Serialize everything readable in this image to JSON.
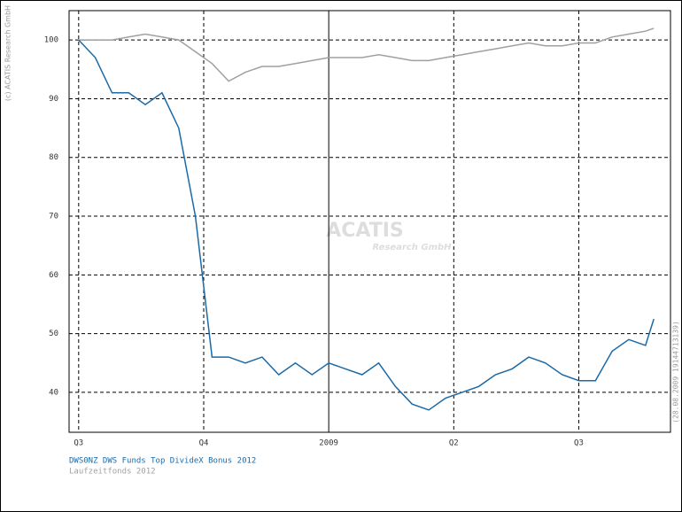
{
  "chart_data": {
    "type": "line",
    "copyright": "(c) ACATIS Research GmbH",
    "timestamp": "(28.08.2009 19144713139)",
    "watermark": {
      "title": "ACATIS",
      "subtitle": "Research GmbH"
    },
    "x": [
      0,
      0.4,
      0.8,
      1.2,
      1.6,
      2.0,
      2.4,
      2.8,
      3.2,
      3.6,
      4.0,
      4.4,
      4.8,
      5.2,
      5.6,
      6.0,
      6.4,
      6.8,
      7.2,
      7.6,
      8.0,
      8.4,
      8.8,
      9.2,
      9.6,
      10.0,
      10.4,
      10.8,
      11.2,
      11.6,
      12.0,
      12.4,
      12.8,
      13.2,
      13.6,
      13.8
    ],
    "series": [
      {
        "name": "DWS0NZ DWS Funds Top DivideX Bonus 2012",
        "color": "#1a6aa8",
        "values": [
          100,
          97,
          91,
          91,
          89,
          91,
          85,
          70,
          46,
          46,
          45,
          46,
          43,
          45,
          43,
          45,
          44,
          43,
          45,
          41,
          38,
          37,
          39,
          40,
          41,
          43,
          44,
          46,
          45,
          43,
          42,
          42,
          47,
          49,
          48,
          52.5
        ]
      },
      {
        "name": "Laufzeitfonds 2012",
        "color": "#a0a0a0",
        "values": [
          100,
          100,
          100,
          100.5,
          101,
          100.5,
          100,
          98,
          96,
          93,
          94.5,
          95.5,
          95.5,
          96,
          96.5,
          97,
          97,
          97,
          97.5,
          97,
          96.5,
          96.5,
          97,
          97.5,
          98,
          98.5,
          99,
          99.5,
          99,
          99,
          99.5,
          99.5,
          100.5,
          101,
          101.5,
          102
        ]
      }
    ],
    "xlim": [
      -0.23,
      14.2
    ],
    "xticks": [
      {
        "value": 0,
        "label": "Q3"
      },
      {
        "value": 3,
        "label": "Q4"
      },
      {
        "value": 6,
        "label": "2009"
      },
      {
        "value": 9,
        "label": "Q2"
      },
      {
        "value": 12,
        "label": "Q3"
      }
    ],
    "ylim": [
      33.2,
      105
    ],
    "yticks": [
      40,
      50,
      60,
      70,
      80,
      90,
      100
    ],
    "grid": true
  }
}
